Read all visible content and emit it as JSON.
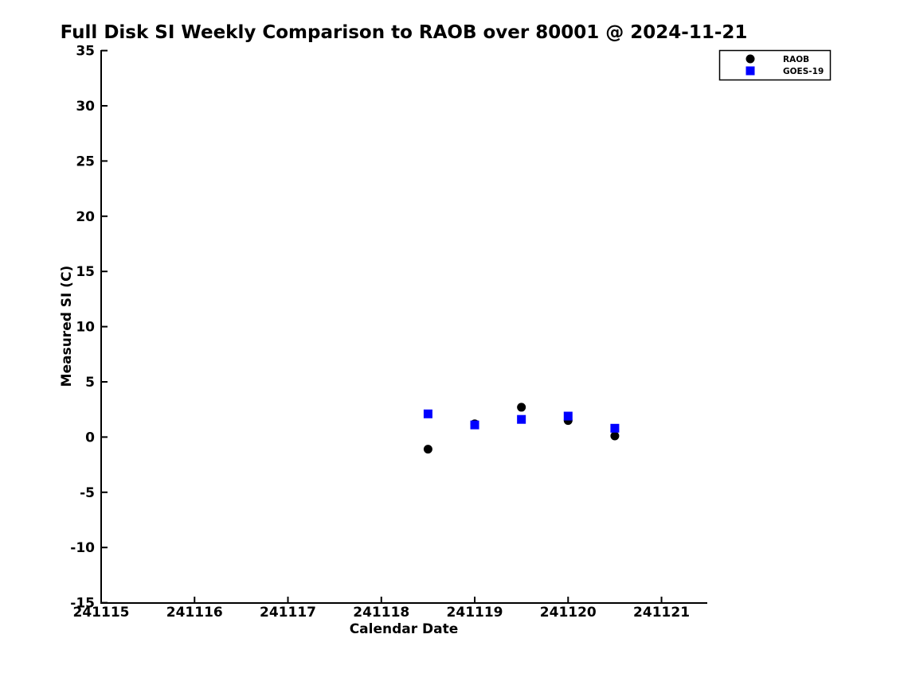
{
  "title": "Full Disk SI Weekly Comparison to RAOB over 80001 @ 2024-11-21",
  "legend": {
    "items": [
      {
        "label": "RAOB",
        "marker": "circle",
        "color": "#000000"
      },
      {
        "label": "GOES-19",
        "marker": "square",
        "color": "#0000ff"
      }
    ]
  },
  "chart_data": {
    "type": "scatter",
    "title": "Full Disk SI Weekly Comparison to RAOB over 80001 @ 2024-11-21",
    "xlabel": "Calendar Date",
    "ylabel": "Measured SI (C)",
    "xlim": [
      241115,
      241121.49
    ],
    "ylim": [
      -15,
      35
    ],
    "xticks": [
      241115,
      241116,
      241117,
      241118,
      241119,
      241120,
      241121
    ],
    "yticks": [
      35,
      30,
      25,
      20,
      15,
      10,
      5,
      0,
      -5,
      -10,
      -15
    ],
    "grid": false,
    "legend_position": "top-right",
    "series": [
      {
        "name": "RAOB",
        "marker": "circle",
        "color": "#000000",
        "x": [
          241118.5,
          241119.0,
          241119.5,
          241120.0,
          241120.5
        ],
        "y": [
          -1.1,
          1.2,
          2.7,
          1.5,
          0.1
        ]
      },
      {
        "name": "GOES-19",
        "marker": "square",
        "color": "#0000ff",
        "x": [
          241118.5,
          241119.0,
          241119.5,
          241120.0,
          241120.5
        ],
        "y": [
          2.1,
          1.1,
          1.6,
          1.9,
          0.8
        ]
      }
    ]
  }
}
